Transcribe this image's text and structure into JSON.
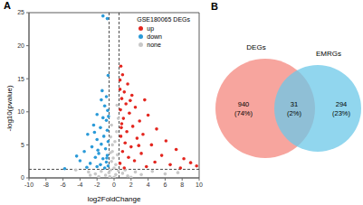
{
  "chart_data": [
    {
      "type": "scatter",
      "panel": "A",
      "x_label": "log2FoldChange",
      "y_label": "-log10(pvalue)",
      "xlim": [
        -10,
        10
      ],
      "xticks": [
        -10,
        -8,
        -6,
        -4,
        -2,
        0,
        2,
        4,
        6,
        8,
        10
      ],
      "ylim": [
        0,
        25
      ],
      "yticks": [
        0,
        5,
        10,
        15,
        20,
        25
      ],
      "legend": "upper right",
      "legend_title": "GSE180065 DEGs",
      "reference_lines": {
        "x": [
          -0.585,
          0.585
        ],
        "y": [
          1.301
        ]
      },
      "series": [
        {
          "name": "up",
          "color": "#e3261f",
          "values": [
            [
              0.8,
              16.9
            ],
            [
              1.0,
              15.6
            ],
            [
              0.7,
              14.8
            ],
            [
              1.6,
              14.2
            ],
            [
              1.2,
              13.0
            ],
            [
              2.1,
              12.5
            ],
            [
              0.9,
              12.0
            ],
            [
              3.6,
              11.8
            ],
            [
              1.4,
              11.2
            ],
            [
              2.5,
              10.7
            ],
            [
              0.75,
              10.3
            ],
            [
              1.8,
              9.8
            ],
            [
              4.0,
              9.5
            ],
            [
              1.1,
              9.0
            ],
            [
              3.0,
              8.6
            ],
            [
              0.9,
              8.2
            ],
            [
              2.2,
              7.8
            ],
            [
              5.0,
              7.4
            ],
            [
              1.5,
              7.0
            ],
            [
              3.4,
              6.6
            ],
            [
              0.8,
              6.3
            ],
            [
              2.7,
              6.0
            ],
            [
              6.1,
              5.6
            ],
            [
              1.3,
              5.3
            ],
            [
              4.4,
              5.0
            ],
            [
              2.0,
              4.7
            ],
            [
              7.3,
              4.3
            ],
            [
              1.0,
              4.0
            ],
            [
              3.2,
              3.7
            ],
            [
              5.6,
              3.4
            ],
            [
              1.7,
              3.1
            ],
            [
              8.2,
              2.9
            ],
            [
              2.4,
              2.6
            ],
            [
              4.8,
              2.4
            ],
            [
              0.7,
              2.2
            ],
            [
              6.6,
              2.0
            ],
            [
              9.7,
              1.8
            ],
            [
              3.8,
              1.7
            ],
            [
              1.2,
              1.5
            ],
            [
              7.8,
              1.5
            ],
            [
              9.0,
              2.3
            ],
            [
              2.9,
              4.9
            ],
            [
              0.85,
              7.6
            ],
            [
              1.9,
              11.7
            ],
            [
              0.7,
              13.4
            ]
          ]
        },
        {
          "name": "down",
          "color": "#2a9ad8",
          "values": [
            [
              -1.3,
              24.5
            ],
            [
              -0.8,
              24.1
            ],
            [
              -0.7,
              15.5
            ],
            [
              -0.9,
              12.3
            ],
            [
              -1.5,
              11.8
            ],
            [
              -1.1,
              10.9
            ],
            [
              -0.75,
              10.2
            ],
            [
              -2.0,
              9.6
            ],
            [
              -1.3,
              9.1
            ],
            [
              -0.9,
              8.7
            ],
            [
              -2.4,
              8.0
            ],
            [
              -1.6,
              7.6
            ],
            [
              -0.8,
              7.2
            ],
            [
              -3.1,
              6.6
            ],
            [
              -1.2,
              6.3
            ],
            [
              -2.0,
              5.8
            ],
            [
              -0.7,
              5.5
            ],
            [
              -1.5,
              5.1
            ],
            [
              -2.6,
              4.7
            ],
            [
              -1.0,
              4.4
            ],
            [
              -3.5,
              4.0
            ],
            [
              -1.8,
              3.7
            ],
            [
              -0.8,
              3.4
            ],
            [
              -2.2,
              3.1
            ],
            [
              -1.3,
              2.9
            ],
            [
              -4.0,
              2.6
            ],
            [
              -0.9,
              2.4
            ],
            [
              -2.8,
              2.2
            ],
            [
              -1.6,
              2.0
            ],
            [
              -0.7,
              1.8
            ],
            [
              -2.0,
              1.7
            ],
            [
              -3.2,
              1.6
            ],
            [
              -1.1,
              1.5
            ],
            [
              -5.8,
              1.4
            ],
            [
              -4.4,
              3.3
            ],
            [
              -1.4,
              13.2
            ],
            [
              -0.65,
              9.3
            ],
            [
              -2.3,
              6.9
            ],
            [
              -1.9,
              4.2
            ],
            [
              -0.85,
              3.0
            ]
          ]
        },
        {
          "name": "none",
          "color": "#c8c8c8",
          "values": [
            [
              -4.5,
              1.2
            ],
            [
              -3.0,
              0.9
            ],
            [
              -2.2,
              0.6
            ],
            [
              -1.5,
              1.0
            ],
            [
              -1.0,
              0.4
            ],
            [
              -0.6,
              0.8
            ],
            [
              -0.4,
              1.2
            ],
            [
              -0.3,
              2.5
            ],
            [
              -0.2,
              4.0
            ],
            [
              -0.4,
              6.2
            ],
            [
              -0.3,
              8.0
            ],
            [
              -0.1,
              3.0
            ],
            [
              0.0,
              1.5
            ],
            [
              0.1,
              5.5
            ],
            [
              0.2,
              2.0
            ],
            [
              0.3,
              7.0
            ],
            [
              0.4,
              3.5
            ],
            [
              0.5,
              9.0
            ],
            [
              0.2,
              0.5
            ],
            [
              0.5,
              1.1
            ],
            [
              1.0,
              0.7
            ],
            [
              1.6,
              0.3
            ],
            [
              2.5,
              0.9
            ],
            [
              3.2,
              0.5
            ],
            [
              4.5,
              1.0
            ],
            [
              6.0,
              0.6
            ],
            [
              7.5,
              0.8
            ],
            [
              -0.5,
              0.2
            ],
            [
              0.0,
              0.1
            ],
            [
              -0.2,
              5.0
            ],
            [
              0.35,
              11.0
            ],
            [
              -0.45,
              3.8
            ],
            [
              1.3,
              1.2
            ],
            [
              -1.8,
              0.2
            ],
            [
              2.0,
              0.1
            ],
            [
              -2.8,
              0.4
            ]
          ]
        }
      ]
    },
    {
      "type": "venn",
      "panel": "B",
      "sets": [
        {
          "name": "DEGs",
          "color": "#f4877e"
        },
        {
          "name": "EMRGs",
          "color": "#6cc8e8"
        }
      ],
      "regions": [
        {
          "sets": [
            "DEGs"
          ],
          "count": 940,
          "label": "(74%)"
        },
        {
          "sets": [
            "DEGs",
            "EMRGs"
          ],
          "count": 31,
          "label": "(2%)"
        },
        {
          "sets": [
            "EMRGs"
          ],
          "count": 294,
          "label": "(23%)"
        }
      ]
    }
  ]
}
